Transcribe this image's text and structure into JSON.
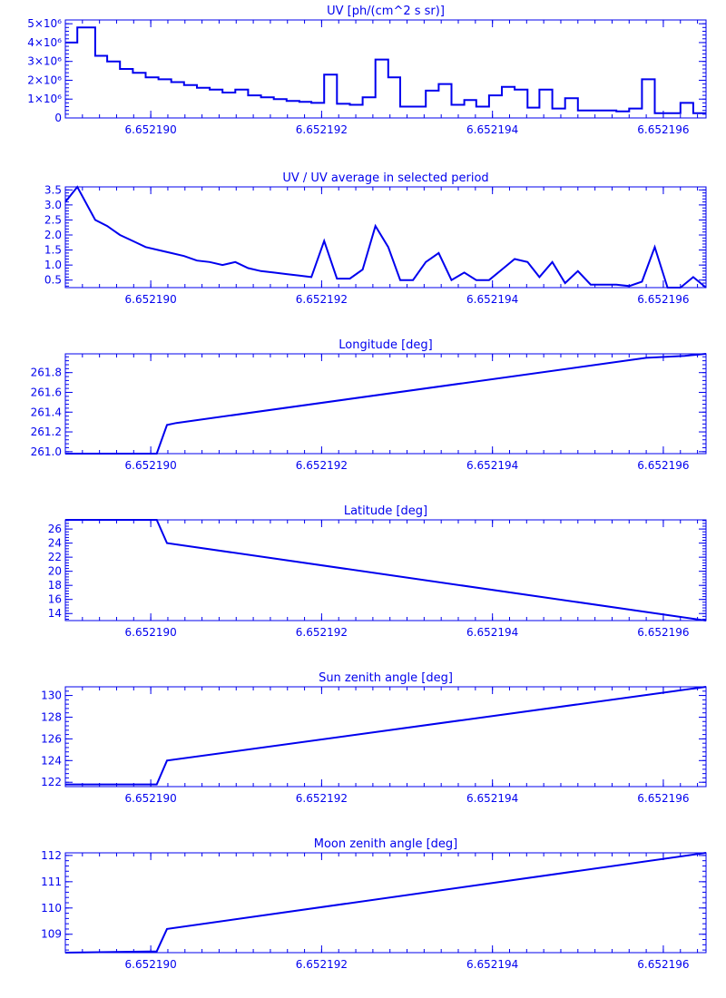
{
  "style": {
    "color": "#0000ee",
    "background": "#ffffff"
  },
  "chart_data": [
    {
      "type": "line",
      "step": true,
      "title": "UV [ph/(cm^2 s sr)]",
      "xlim": [
        6.652189,
        6.6521965
      ],
      "ylim": [
        0,
        5200000
      ],
      "xticks": [
        6.65219,
        6.652192,
        6.652194,
        6.652196
      ],
      "xtick_labels": [
        "6.652190",
        "6.652192",
        "6.652194",
        "6.652196"
      ],
      "yticks": [
        0,
        1000000,
        2000000,
        3000000,
        4000000,
        5000000
      ],
      "ytick_labels": [
        "0",
        "1×10⁶",
        "2×10⁶",
        "3×10⁶",
        "4×10⁶",
        "5×10⁶"
      ],
      "x": [
        6.652189,
        6.65218914,
        6.65218935,
        6.65218949,
        6.65218964,
        6.65218979,
        6.65218994,
        6.65219009,
        6.65219024,
        6.65219039,
        6.65219054,
        6.65219069,
        6.65219084,
        6.65219099,
        6.65219114,
        6.65219129,
        6.65219144,
        6.65219159,
        6.65219174,
        6.65219188,
        6.65219203,
        6.65219218,
        6.65219233,
        6.65219248,
        6.65219263,
        6.65219278,
        6.65219292,
        6.65219307,
        6.65219322,
        6.65219337,
        6.65219352,
        6.65219367,
        6.65219381,
        6.65219396,
        6.65219411,
        6.65219426,
        6.65219441,
        6.65219455,
        6.6521947,
        6.65219485,
        6.652195,
        6.65219515,
        6.6521953,
        6.65219545,
        6.6521956,
        6.65219575,
        6.6521959,
        6.65219605,
        6.6521962,
        6.65219635
      ],
      "y": [
        4000000,
        4800000,
        3300000,
        3000000,
        2600000,
        2400000,
        2150000,
        2050000,
        1900000,
        1750000,
        1600000,
        1500000,
        1350000,
        1500000,
        1200000,
        1100000,
        1000000,
        900000,
        850000,
        800000,
        2300000,
        750000,
        700000,
        1100000,
        3100000,
        2150000,
        600000,
        600000,
        1450000,
        1800000,
        700000,
        950000,
        600000,
        1200000,
        1650000,
        1500000,
        550000,
        1500000,
        500000,
        1050000,
        400000,
        400000,
        400000,
        350000,
        500000,
        2050000,
        250000,
        250000,
        800000,
        250000
      ]
    },
    {
      "type": "line",
      "title": "UV / UV average in selected period",
      "xlim": [
        6.652189,
        6.6521965
      ],
      "ylim": [
        0.25,
        3.6
      ],
      "xticks": [
        6.65219,
        6.652192,
        6.652194,
        6.652196
      ],
      "xtick_labels": [
        "6.652190",
        "6.652192",
        "6.652194",
        "6.652196"
      ],
      "yticks": [
        0.5,
        1.0,
        1.5,
        2.0,
        2.5,
        3.0,
        3.5
      ],
      "ytick_labels": [
        "0.5",
        "1.0",
        "1.5",
        "2.0",
        "2.5",
        "3.0",
        "3.5"
      ],
      "x": [
        6.652189,
        6.65218914,
        6.65218935,
        6.65218949,
        6.65218964,
        6.65218979,
        6.65218994,
        6.65219009,
        6.65219024,
        6.65219039,
        6.65219054,
        6.65219069,
        6.65219084,
        6.65219099,
        6.65219114,
        6.65219129,
        6.65219144,
        6.65219159,
        6.65219174,
        6.65219188,
        6.65219203,
        6.65219218,
        6.65219233,
        6.65219248,
        6.65219263,
        6.65219278,
        6.65219292,
        6.65219307,
        6.65219322,
        6.65219337,
        6.65219352,
        6.65219367,
        6.65219381,
        6.65219396,
        6.65219411,
        6.65219426,
        6.65219441,
        6.65219455,
        6.6521947,
        6.65219485,
        6.652195,
        6.65219515,
        6.6521953,
        6.65219545,
        6.6521956,
        6.65219575,
        6.6521959,
        6.65219605,
        6.6521962,
        6.65219635,
        6.6521965
      ],
      "y": [
        3.1,
        3.6,
        2.5,
        2.3,
        2.0,
        1.8,
        1.6,
        1.5,
        1.4,
        1.3,
        1.15,
        1.1,
        1.0,
        1.1,
        0.9,
        0.8,
        0.75,
        0.7,
        0.65,
        0.6,
        1.8,
        0.55,
        0.55,
        0.85,
        2.3,
        1.6,
        0.5,
        0.5,
        1.1,
        1.4,
        0.5,
        0.75,
        0.5,
        0.5,
        0.85,
        1.2,
        1.1,
        0.6,
        1.1,
        0.4,
        0.8,
        0.35,
        0.35,
        0.35,
        0.3,
        0.45,
        1.6,
        0.25,
        0.25,
        0.6,
        0.25
      ]
    },
    {
      "type": "line",
      "title": "Longitude [deg]",
      "xlim": [
        6.652189,
        6.6521965
      ],
      "ylim": [
        260.98,
        261.99
      ],
      "xticks": [
        6.65219,
        6.652192,
        6.652194,
        6.652196
      ],
      "xtick_labels": [
        "6.652190",
        "6.652192",
        "6.652194",
        "6.652196"
      ],
      "yticks": [
        261.0,
        261.2,
        261.4,
        261.6,
        261.8
      ],
      "ytick_labels": [
        "261.0",
        "261.2",
        "261.4",
        "261.6",
        "261.8"
      ],
      "x": [
        6.652189,
        6.65219007,
        6.65219019,
        6.6521903,
        6.6521958,
        6.65219625,
        6.6521965
      ],
      "y": [
        260.98,
        260.98,
        261.27,
        261.29,
        261.95,
        261.97,
        261.99
      ]
    },
    {
      "type": "line",
      "title": "Latitude [deg]",
      "xlim": [
        6.652189,
        6.6521965
      ],
      "ylim": [
        13.0,
        27.3
      ],
      "xticks": [
        6.65219,
        6.652192,
        6.652194,
        6.652196
      ],
      "xtick_labels": [
        "6.652190",
        "6.652192",
        "6.652194",
        "6.652196"
      ],
      "yticks": [
        14,
        16,
        18,
        20,
        22,
        24,
        26
      ],
      "ytick_labels": [
        "14",
        "16",
        "18",
        "20",
        "22",
        "24",
        "26"
      ],
      "x": [
        6.652189,
        6.65219007,
        6.65219019,
        6.6521965
      ],
      "y": [
        27.3,
        27.3,
        24.0,
        13.0
      ]
    },
    {
      "type": "line",
      "title": "Sun zenith angle [deg]",
      "xlim": [
        6.652189,
        6.6521965
      ],
      "ylim": [
        121.6,
        130.8
      ],
      "xticks": [
        6.65219,
        6.652192,
        6.652194,
        6.652196
      ],
      "xtick_labels": [
        "6.652190",
        "6.652192",
        "6.652194",
        "6.652196"
      ],
      "yticks": [
        122,
        124,
        126,
        128,
        130
      ],
      "ytick_labels": [
        "122",
        "124",
        "126",
        "128",
        "130"
      ],
      "x": [
        6.652189,
        6.65219007,
        6.65219019,
        6.6521965
      ],
      "y": [
        121.8,
        121.8,
        124.0,
        130.8
      ]
    },
    {
      "type": "line",
      "title": "Moon zenith angle [deg]",
      "xlim": [
        6.652189,
        6.6521965
      ],
      "ylim": [
        108.3,
        112.1
      ],
      "xticks": [
        6.65219,
        6.652192,
        6.652194,
        6.652196
      ],
      "xtick_labels": [
        "6.652190",
        "6.652192",
        "6.652194",
        "6.652196"
      ],
      "yticks": [
        109,
        110,
        111,
        112
      ],
      "ytick_labels": [
        "109",
        "110",
        "111",
        "112"
      ],
      "x": [
        6.652189,
        6.65219007,
        6.65219019,
        6.6521965
      ],
      "y": [
        108.3,
        108.35,
        109.2,
        112.1
      ]
    }
  ]
}
